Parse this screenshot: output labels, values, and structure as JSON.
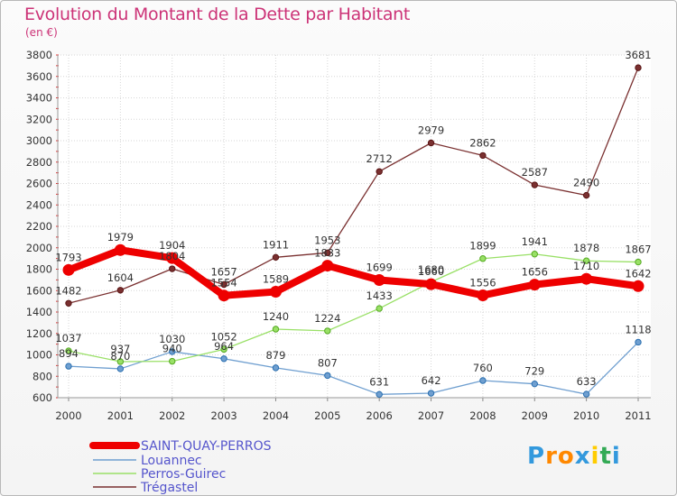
{
  "title": "Evolution du Montant de la Dette par Habitant",
  "subtitle": "(en €)",
  "logo": "Proxiti",
  "chart_data": {
    "type": "line",
    "title": "Evolution du Montant de la Dette par Habitant",
    "ylabel": "(en €)",
    "x": [
      "2000",
      "2001",
      "2002",
      "2003",
      "2004",
      "2005",
      "2006",
      "2007",
      "2008",
      "2009",
      "2010",
      "2011"
    ],
    "ylim": [
      600,
      3800
    ],
    "yticks": [
      600,
      800,
      1000,
      1200,
      1400,
      1600,
      1800,
      2000,
      2200,
      2400,
      2600,
      2800,
      3000,
      3200,
      3400,
      3600,
      3800
    ],
    "grid": true,
    "legend_position": "bottom-left",
    "series": [
      {
        "name": "SAINT-QUAY-PERROS",
        "color": "#ee0000",
        "values": [
          1793,
          1979,
          1904,
          1554,
          1589,
          1833,
          1699,
          1660,
          1556,
          1656,
          1710,
          1642
        ]
      },
      {
        "name": "Louannec",
        "color": "#6f9fd0",
        "values": [
          894,
          870,
          1030,
          964,
          879,
          807,
          631,
          642,
          760,
          729,
          633,
          1118
        ]
      },
      {
        "name": "Perros-Guirec",
        "color": "#99e066",
        "values": [
          1037,
          937,
          940,
          1052,
          1240,
          1224,
          1433,
          1680,
          1899,
          1941,
          1878,
          1867
        ]
      },
      {
        "name": "Trégastel",
        "color": "#7a3030",
        "values": [
          1482,
          1604,
          1804,
          1657,
          1911,
          1953,
          2712,
          2979,
          2862,
          2587,
          2490,
          3681
        ]
      }
    ]
  }
}
